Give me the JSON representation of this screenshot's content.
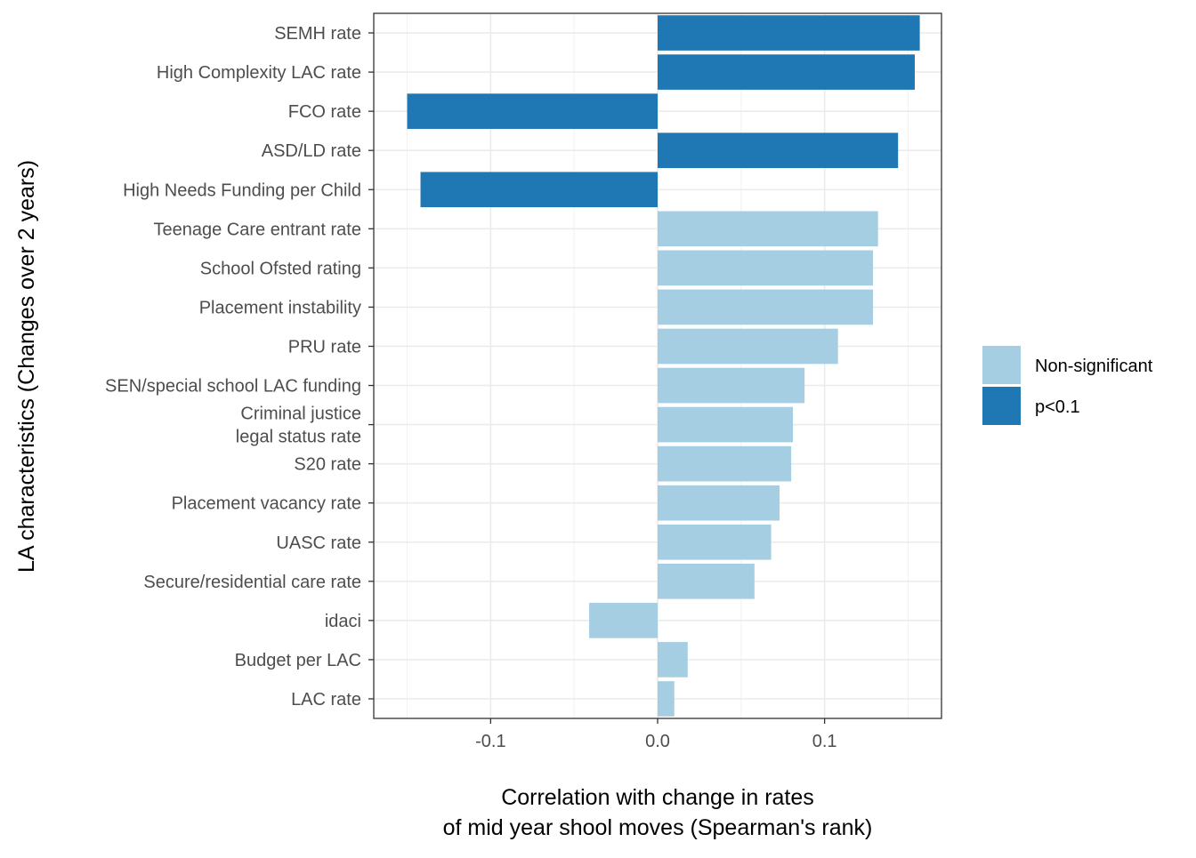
{
  "chart_data": {
    "type": "bar",
    "orientation": "horizontal",
    "xlabel": [
      "Correlation with change in rates",
      "of mid year shool moves (Spearman's rank)"
    ],
    "ylabel": "LA characteristics (Changes over 2 years)",
    "xlim": [
      -0.17,
      0.17
    ],
    "x_ticks": [
      -0.1,
      0.0,
      0.1
    ],
    "x_tick_labels": [
      "-0.1",
      "0.0",
      "0.1"
    ],
    "grid": true,
    "legend_position": "right",
    "legend": [
      {
        "label": "Non-significant",
        "color": "#a6cee3"
      },
      {
        "label": "p<0.1",
        "color": "#1f78b4"
      }
    ],
    "categories": [
      [
        "SEMH rate"
      ],
      [
        "High Complexity LAC rate"
      ],
      [
        "FCO rate"
      ],
      [
        "ASD/LD rate"
      ],
      [
        "High Needs Funding per Child"
      ],
      [
        "Teenage Care entrant rate"
      ],
      [
        "School Ofsted rating"
      ],
      [
        "Placement instability"
      ],
      [
        "PRU rate"
      ],
      [
        "SEN/special school LAC funding"
      ],
      [
        "Criminal justice",
        "legal status rate"
      ],
      [
        "S20 rate"
      ],
      [
        "Placement vacancy rate"
      ],
      [
        "UASC rate"
      ],
      [
        "Secure/residential care rate"
      ],
      [
        "idaci"
      ],
      [
        "Budget per LAC"
      ],
      [
        "LAC rate"
      ]
    ],
    "values": [
      0.157,
      0.154,
      -0.15,
      0.144,
      -0.142,
      0.132,
      0.129,
      0.129,
      0.108,
      0.088,
      0.081,
      0.08,
      0.073,
      0.068,
      0.058,
      -0.041,
      0.018,
      0.01
    ],
    "groups": [
      "p<0.1",
      "p<0.1",
      "p<0.1",
      "p<0.1",
      "p<0.1",
      "Non-significant",
      "Non-significant",
      "Non-significant",
      "Non-significant",
      "Non-significant",
      "Non-significant",
      "Non-significant",
      "Non-significant",
      "Non-significant",
      "Non-significant",
      "Non-significant",
      "Non-significant",
      "Non-significant"
    ]
  }
}
